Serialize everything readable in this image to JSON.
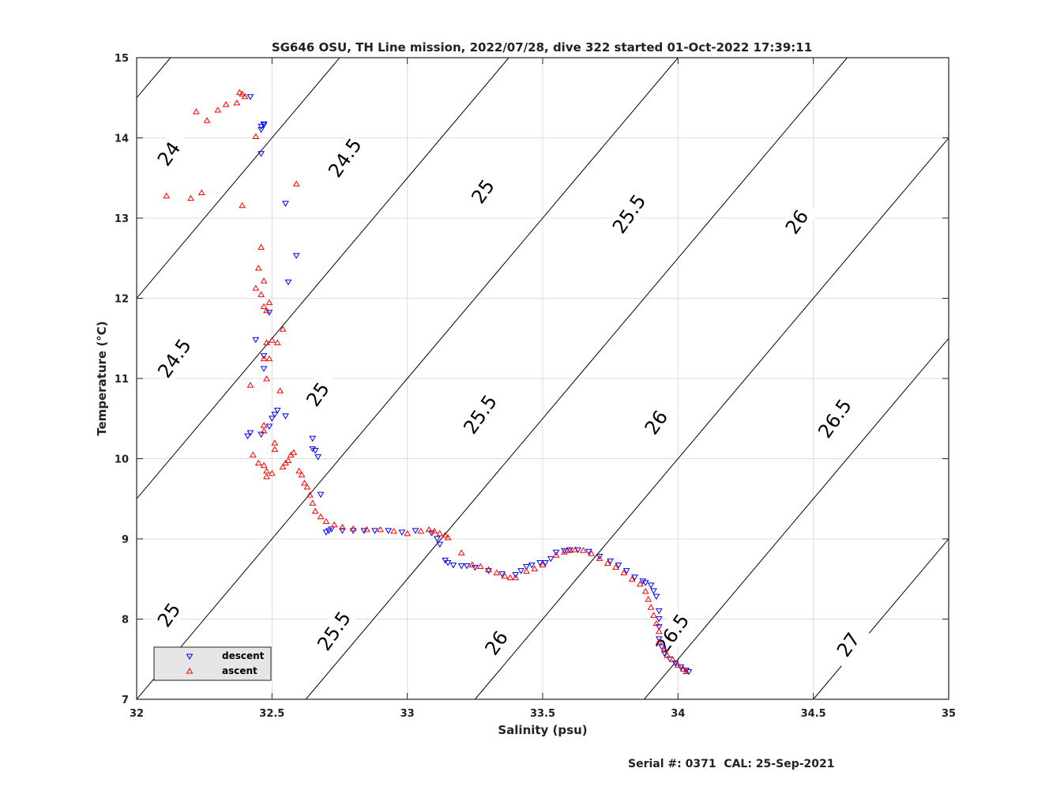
{
  "chart_data": {
    "type": "scatter",
    "title": "SG646 OSU, TH Line mission, 2022/07/28, dive 322 started 01-Oct-2022 17:39:11",
    "xlabel": "Salinity (psu)",
    "ylabel": "Temperature (°C)",
    "xlim": [
      32,
      35
    ],
    "ylim": [
      7,
      15
    ],
    "xticks": [
      "32",
      "32.5",
      "33",
      "33.5",
      "34",
      "34.5",
      "35"
    ],
    "yticks": [
      "7",
      "8",
      "9",
      "10",
      "11",
      "12",
      "13",
      "14",
      "15"
    ],
    "grid": true,
    "legend_position": "bottom-left",
    "footer": "Serial #: 0371  CAL: 25-Sep-2021",
    "contour_labels": [
      {
        "text": "24",
        "s": 32.12,
        "t": 13.8
      },
      {
        "text": "24.5",
        "s": 32.77,
        "t": 13.75
      },
      {
        "text": "25",
        "s": 33.28,
        "t": 13.33
      },
      {
        "text": "25.5",
        "s": 33.82,
        "t": 13.05
      },
      {
        "text": "26",
        "s": 34.44,
        "t": 12.95
      },
      {
        "text": "24.5",
        "s": 32.14,
        "t": 11.25
      },
      {
        "text": "25",
        "s": 32.67,
        "t": 10.8
      },
      {
        "text": "25.5",
        "s": 33.27,
        "t": 10.55
      },
      {
        "text": "26",
        "s": 33.92,
        "t": 10.45
      },
      {
        "text": "26.5",
        "s": 34.58,
        "t": 10.5
      },
      {
        "text": "25",
        "s": 32.12,
        "t": 8.05
      },
      {
        "text": "25.5",
        "s": 32.73,
        "t": 7.85
      },
      {
        "text": "26",
        "s": 33.33,
        "t": 7.7
      },
      {
        "text": "26.5",
        "s": 33.98,
        "t": 7.82
      },
      {
        "text": "27",
        "s": 34.63,
        "t": 7.68
      }
    ],
    "series": [
      {
        "name": "descent",
        "color": "#0000ff",
        "marker": "triangle-down",
        "points": [
          [
            32.42,
            14.51
          ],
          [
            32.46,
            14.14
          ],
          [
            32.47,
            14.17
          ],
          [
            32.46,
            14.1
          ],
          [
            32.47,
            14.16
          ],
          [
            32.46,
            13.8
          ],
          [
            32.55,
            13.18
          ],
          [
            32.59,
            12.53
          ],
          [
            32.56,
            12.2
          ],
          [
            32.49,
            11.82
          ],
          [
            32.44,
            11.48
          ],
          [
            32.47,
            11.28
          ],
          [
            32.47,
            11.12
          ],
          [
            32.52,
            10.6
          ],
          [
            32.51,
            10.55
          ],
          [
            32.5,
            10.5
          ],
          [
            32.55,
            10.53
          ],
          [
            32.49,
            10.4
          ],
          [
            32.42,
            10.32
          ],
          [
            32.41,
            10.28
          ],
          [
            32.46,
            10.3
          ],
          [
            32.65,
            10.25
          ],
          [
            32.65,
            10.12
          ],
          [
            32.66,
            10.1
          ],
          [
            32.67,
            10.02
          ],
          [
            32.68,
            9.55
          ],
          [
            32.7,
            9.08
          ],
          [
            32.71,
            9.1
          ],
          [
            32.72,
            9.12
          ],
          [
            32.76,
            9.1
          ],
          [
            32.8,
            9.1
          ],
          [
            32.84,
            9.1
          ],
          [
            32.88,
            9.1
          ],
          [
            32.93,
            9.1
          ],
          [
            32.98,
            9.08
          ],
          [
            33.03,
            9.1
          ],
          [
            33.09,
            9.07
          ],
          [
            33.11,
            9.0
          ],
          [
            33.12,
            8.93
          ],
          [
            33.14,
            8.73
          ],
          [
            33.15,
            8.7
          ],
          [
            33.17,
            8.67
          ],
          [
            33.2,
            8.66
          ],
          [
            33.22,
            8.66
          ],
          [
            33.25,
            8.64
          ],
          [
            33.3,
            8.6
          ],
          [
            33.35,
            8.56
          ],
          [
            33.4,
            8.55
          ],
          [
            33.42,
            8.6
          ],
          [
            33.44,
            8.65
          ],
          [
            33.46,
            8.67
          ],
          [
            33.49,
            8.7
          ],
          [
            33.51,
            8.7
          ],
          [
            33.53,
            8.75
          ],
          [
            33.55,
            8.83
          ],
          [
            33.58,
            8.85
          ],
          [
            33.6,
            8.86
          ],
          [
            33.63,
            8.86
          ],
          [
            33.67,
            8.84
          ],
          [
            33.71,
            8.78
          ],
          [
            33.75,
            8.72
          ],
          [
            33.78,
            8.67
          ],
          [
            33.81,
            8.6
          ],
          [
            33.84,
            8.52
          ],
          [
            33.87,
            8.47
          ],
          [
            33.88,
            8.45
          ],
          [
            33.9,
            8.42
          ],
          [
            33.91,
            8.35
          ],
          [
            33.92,
            8.28
          ],
          [
            33.93,
            8.1
          ],
          [
            33.93,
            8.0
          ],
          [
            33.93,
            7.9
          ],
          [
            33.93,
            7.75
          ],
          [
            33.94,
            7.65
          ],
          [
            33.95,
            7.57
          ],
          [
            33.97,
            7.5
          ],
          [
            33.99,
            7.45
          ],
          [
            34.01,
            7.4
          ],
          [
            34.03,
            7.36
          ],
          [
            34.04,
            7.34
          ]
        ]
      },
      {
        "name": "ascent",
        "color": "#ff0000",
        "marker": "triangle-up",
        "points": [
          [
            32.38,
            14.57
          ],
          [
            32.39,
            14.55
          ],
          [
            32.4,
            14.52
          ],
          [
            32.37,
            14.44
          ],
          [
            32.33,
            14.42
          ],
          [
            32.3,
            14.35
          ],
          [
            32.26,
            14.22
          ],
          [
            32.22,
            14.33
          ],
          [
            32.44,
            14.02
          ],
          [
            32.59,
            13.43
          ],
          [
            32.11,
            13.28
          ],
          [
            32.24,
            13.32
          ],
          [
            32.2,
            13.25
          ],
          [
            32.39,
            13.16
          ],
          [
            32.46,
            12.64
          ],
          [
            32.45,
            12.38
          ],
          [
            32.44,
            12.13
          ],
          [
            32.46,
            12.05
          ],
          [
            32.47,
            12.22
          ],
          [
            32.47,
            11.9
          ],
          [
            32.49,
            11.95
          ],
          [
            32.48,
            11.85
          ],
          [
            32.48,
            11.45
          ],
          [
            32.5,
            11.48
          ],
          [
            32.52,
            11.45
          ],
          [
            32.54,
            11.62
          ],
          [
            32.49,
            11.25
          ],
          [
            32.47,
            11.25
          ],
          [
            32.48,
            11.0
          ],
          [
            32.42,
            10.92
          ],
          [
            32.53,
            10.85
          ],
          [
            32.47,
            10.42
          ],
          [
            32.47,
            10.35
          ],
          [
            32.51,
            10.2
          ],
          [
            32.51,
            10.12
          ],
          [
            32.43,
            10.05
          ],
          [
            32.45,
            9.95
          ],
          [
            32.47,
            9.92
          ],
          [
            32.48,
            9.85
          ],
          [
            32.5,
            9.82
          ],
          [
            32.48,
            9.78
          ],
          [
            32.54,
            9.9
          ],
          [
            32.55,
            9.95
          ],
          [
            32.56,
            9.98
          ],
          [
            32.57,
            10.05
          ],
          [
            32.58,
            10.08
          ],
          [
            32.6,
            9.85
          ],
          [
            32.61,
            9.8
          ],
          [
            32.62,
            9.7
          ],
          [
            32.63,
            9.65
          ],
          [
            32.64,
            9.55
          ],
          [
            32.65,
            9.45
          ],
          [
            32.66,
            9.35
          ],
          [
            32.68,
            9.28
          ],
          [
            32.7,
            9.22
          ],
          [
            32.73,
            9.18
          ],
          [
            32.76,
            9.15
          ],
          [
            32.8,
            9.13
          ],
          [
            32.85,
            9.12
          ],
          [
            32.9,
            9.12
          ],
          [
            32.95,
            9.1
          ],
          [
            33.0,
            9.07
          ],
          [
            33.05,
            9.1
          ],
          [
            33.08,
            9.12
          ],
          [
            33.1,
            9.1
          ],
          [
            33.12,
            9.07
          ],
          [
            33.14,
            9.05
          ],
          [
            33.15,
            9.02
          ],
          [
            33.2,
            8.83
          ],
          [
            33.24,
            8.68
          ],
          [
            33.27,
            8.66
          ],
          [
            33.3,
            8.62
          ],
          [
            33.33,
            8.58
          ],
          [
            33.36,
            8.54
          ],
          [
            33.38,
            8.52
          ],
          [
            33.4,
            8.52
          ],
          [
            33.44,
            8.6
          ],
          [
            33.47,
            8.63
          ],
          [
            33.5,
            8.68
          ],
          [
            33.55,
            8.8
          ],
          [
            33.58,
            8.84
          ],
          [
            33.6,
            8.86
          ],
          [
            33.62,
            8.87
          ],
          [
            33.65,
            8.86
          ],
          [
            33.68,
            8.82
          ],
          [
            33.71,
            8.76
          ],
          [
            33.74,
            8.7
          ],
          [
            33.77,
            8.65
          ],
          [
            33.8,
            8.58
          ],
          [
            33.83,
            8.5
          ],
          [
            33.86,
            8.44
          ],
          [
            33.88,
            8.35
          ],
          [
            33.89,
            8.25
          ],
          [
            33.9,
            8.15
          ],
          [
            33.91,
            8.05
          ],
          [
            33.92,
            7.95
          ],
          [
            33.93,
            7.85
          ],
          [
            33.93,
            7.72
          ],
          [
            33.95,
            7.62
          ],
          [
            33.96,
            7.55
          ],
          [
            33.98,
            7.5
          ],
          [
            34.0,
            7.43
          ],
          [
            34.02,
            7.38
          ],
          [
            34.03,
            7.35
          ]
        ]
      }
    ]
  }
}
